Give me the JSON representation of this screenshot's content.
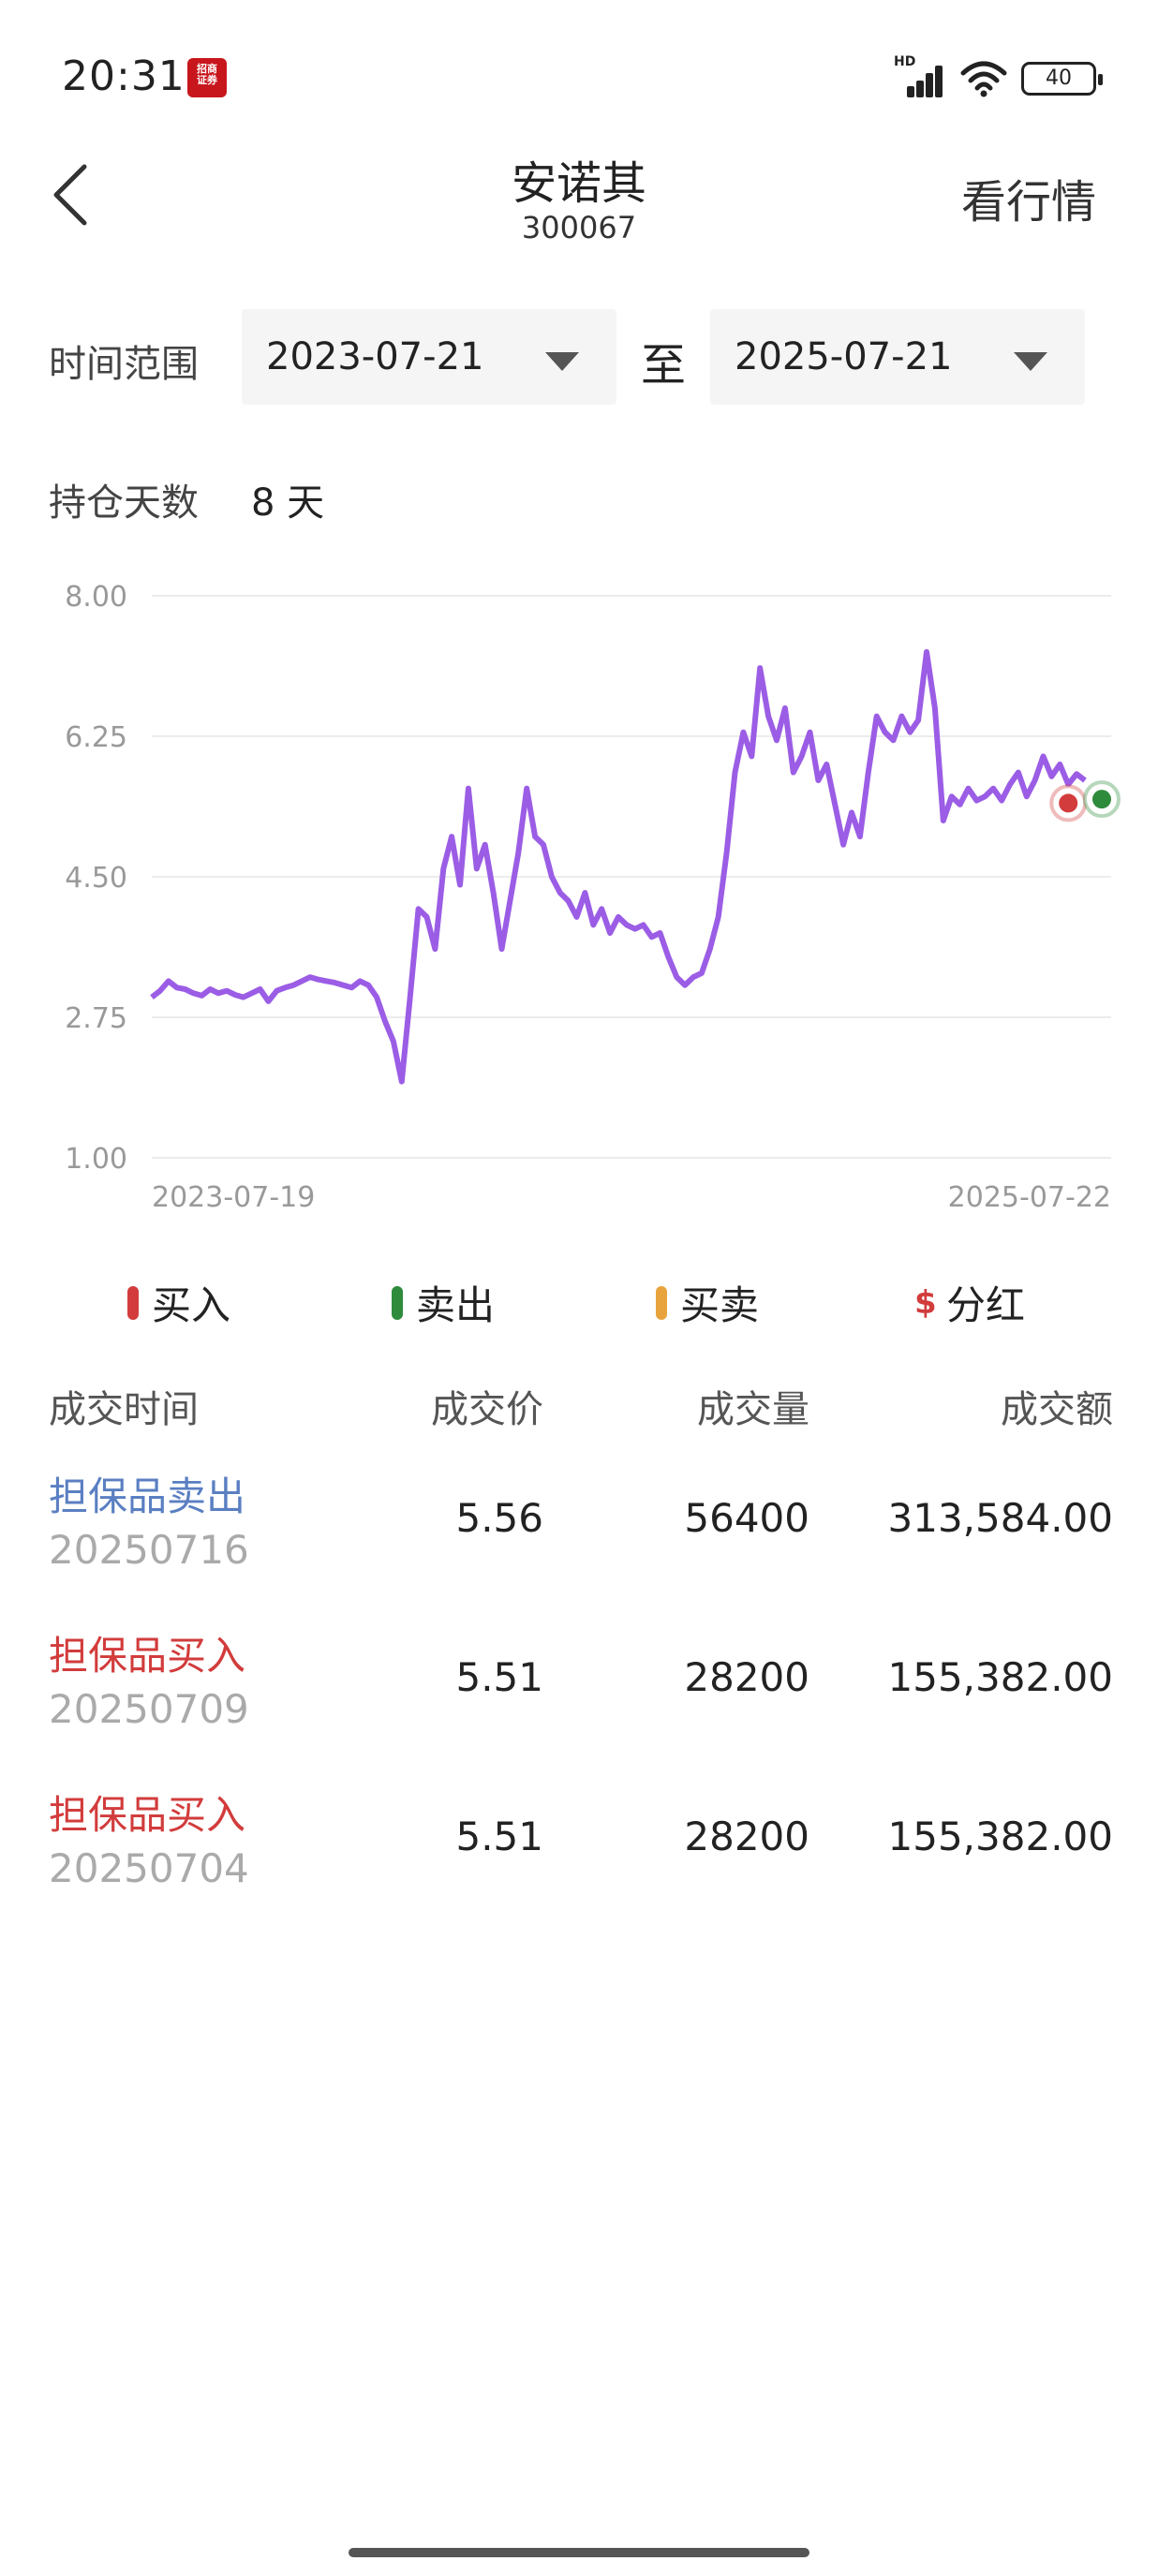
{
  "status_bar": {
    "time": "20:31",
    "app_badge": "招商\n证券",
    "network": "HD",
    "battery": "40"
  },
  "header": {
    "title": "安诺其",
    "code": "300067",
    "action_label": "看行情",
    "back_icon": "chevron-left-icon"
  },
  "date_range": {
    "label": "时间范围",
    "start": "2023-07-21",
    "separator": "至",
    "end": "2025-07-21"
  },
  "holding": {
    "label": "持仓天数",
    "value": "8 天"
  },
  "chart_data": {
    "type": "line",
    "ylim": [
      1.0,
      8.0
    ],
    "y_ticks": [
      "8.00",
      "6.25",
      "4.50",
      "2.75",
      "1.00"
    ],
    "x_tick_labels": [
      "2023-07-19",
      "2025-07-22"
    ],
    "grid": true,
    "color": "#9b5de5",
    "series": [
      {
        "values": [
          3.0,
          3.08,
          3.2,
          3.12,
          3.1,
          3.05,
          3.02,
          3.1,
          3.05,
          3.08,
          3.03,
          3.0,
          3.05,
          3.1,
          2.95,
          3.08,
          3.12,
          3.15,
          3.2,
          3.25,
          3.22,
          3.2,
          3.18,
          3.15,
          3.12,
          3.2,
          3.15,
          3.0,
          2.7,
          2.45,
          1.95,
          3.0,
          4.1,
          4.0,
          3.6,
          4.6,
          5.0,
          4.4,
          5.6,
          4.6,
          4.9,
          4.3,
          3.6,
          4.2,
          4.8,
          5.6,
          5.0,
          4.9,
          4.5,
          4.3,
          4.2,
          4.0,
          4.3,
          3.9,
          4.1,
          3.8,
          4.0,
          3.9,
          3.85,
          3.9,
          3.75,
          3.8,
          3.5,
          3.25,
          3.15,
          3.25,
          3.3,
          3.6,
          4.0,
          4.8,
          5.8,
          6.3,
          6.0,
          7.1,
          6.5,
          6.2,
          6.6,
          5.8,
          6.0,
          6.3,
          5.7,
          5.9,
          5.4,
          4.9,
          5.3,
          5.0,
          5.8,
          6.5,
          6.3,
          6.2,
          6.5,
          6.3,
          6.45,
          7.3,
          6.6,
          5.2,
          5.5,
          5.4,
          5.6,
          5.45,
          5.5,
          5.6,
          5.45,
          5.65,
          5.8,
          5.5,
          5.7,
          6.0,
          5.75,
          5.9,
          5.65,
          5.78,
          5.7
        ]
      }
    ],
    "markers": [
      {
        "type": "buy",
        "index": 110,
        "value": 5.51
      },
      {
        "type": "sell",
        "index": 112,
        "value": 5.56
      }
    ]
  },
  "legend": [
    {
      "label": "买入",
      "color": "#d23c3c",
      "icon": "bar"
    },
    {
      "label": "卖出",
      "color": "#2e8b3c",
      "icon": "bar"
    },
    {
      "label": "买卖",
      "color": "#e8a33c",
      "icon": "bar"
    },
    {
      "label": "分红",
      "color": "#d23c3c",
      "icon": "dollar-icon",
      "symbol": "$"
    }
  ],
  "table": {
    "headers": [
      "成交时间",
      "成交价",
      "成交量",
      "成交额"
    ],
    "rows": [
      {
        "type": "担保品卖出",
        "type_color": "#5a7fc2",
        "date": "20250716",
        "price": "5.56",
        "volume": "56400",
        "amount": "313,584.00"
      },
      {
        "type": "担保品买入",
        "type_color": "#d23c3c",
        "date": "20250709",
        "price": "5.51",
        "volume": "28200",
        "amount": "155,382.00"
      },
      {
        "type": "担保品买入",
        "type_color": "#d23c3c",
        "date": "20250704",
        "price": "5.51",
        "volume": "28200",
        "amount": "155,382.00"
      }
    ]
  }
}
